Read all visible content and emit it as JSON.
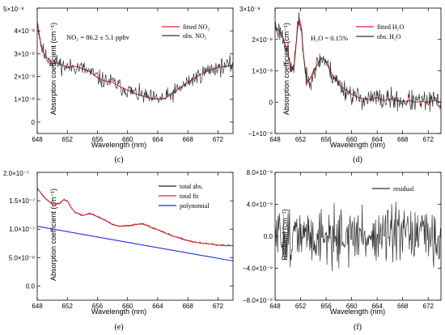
{
  "figure": {
    "panels": [
      {
        "id": "c",
        "caption": "(c)",
        "xlabel": "Wavelength (nm)",
        "ylabel": "Absorption coefficient (cm⁻¹)",
        "annotation": "NO₂ = 86.2 ± 5.1 ppbv",
        "x_ticks": [
          "648",
          "652",
          "656",
          "660",
          "664",
          "668",
          "672"
        ],
        "y_ticks": [
          "0",
          "1×10⁻⁸",
          "2×10⁻⁸",
          "3×10⁻⁸",
          "4×10⁻⁸",
          "5×10⁻⁸"
        ],
        "legend": [
          "fitted NO₂",
          "obs.   NO₂"
        ]
      },
      {
        "id": "d",
        "caption": "(d)",
        "xlabel": "Wavelength (nm)",
        "ylabel": "Absorption coefficient (cm⁻¹)",
        "annotation": "H₂O = 0.15%",
        "x_ticks": [
          "648",
          "652",
          "656",
          "660",
          "664",
          "668",
          "672"
        ],
        "y_ticks": [
          "−1×10⁻⁸",
          "0",
          "1×10⁻⁸",
          "2×10⁻⁸",
          "3×10⁻⁸"
        ],
        "legend": [
          "fitted H₂O",
          "obs.   H₂O"
        ]
      },
      {
        "id": "e",
        "caption": "(e)",
        "xlabel": "Wavelength (nm)",
        "ylabel": "Absorption coefficient (cm⁻¹)",
        "annotation": "",
        "x_ticks": [
          "648",
          "652",
          "656",
          "660",
          "664",
          "668",
          "672"
        ],
        "y_ticks": [
          "0.0",
          "5.0×10⁻⁸",
          "1.0×10⁻⁷",
          "1.5×10⁻⁷",
          "2.0×10⁻⁷"
        ],
        "legend": [
          "total abs.",
          "total fit",
          "polynomial"
        ]
      },
      {
        "id": "f",
        "caption": "(f)",
        "xlabel": "Wavelength (nm)",
        "ylabel": "Residual (cm⁻¹)",
        "annotation": "",
        "x_ticks": [
          "648",
          "652",
          "656",
          "660",
          "664",
          "668",
          "672"
        ],
        "y_ticks": [
          "−8.0×10⁻⁹",
          "−4.0×10⁻⁹",
          "0.0",
          "4.0×10⁻⁹",
          "8.0×10⁻⁹"
        ],
        "legend": [
          "residual"
        ]
      }
    ]
  },
  "chart_data": [
    {
      "type": "line",
      "panel": "c",
      "xlabel": "Wavelength (nm)",
      "ylabel": "Absorption coefficient (cm⁻¹)",
      "xlim": [
        648,
        674
      ],
      "ylim": [
        -5e-09,
        5e-08
      ],
      "x_ticks": [
        648,
        652,
        656,
        660,
        664,
        668,
        672
      ],
      "y_ticks": [
        0,
        1e-08,
        2e-08,
        3e-08,
        4e-08,
        5e-08
      ],
      "grid": false,
      "legend_position": "top-right",
      "annotation": "NO₂ = 86.2 ± 5.1 ppbv",
      "series": [
        {
          "name": "fitted NO₂",
          "color": "#e8202a",
          "style": "smooth",
          "x": [
            648,
            648.5,
            649,
            650,
            651,
            652,
            653,
            654,
            655,
            656,
            657,
            658,
            659,
            660,
            661,
            662,
            663,
            664,
            665,
            666,
            667,
            668,
            669,
            670,
            671,
            672,
            673,
            674
          ],
          "y": [
            4.4e-08,
            3.4e-08,
            2.9e-08,
            2.65e-08,
            2.55e-08,
            2.4e-08,
            2.45e-08,
            2.35e-08,
            2.2e-08,
            1.95e-08,
            1.8e-08,
            1.75e-08,
            1.55e-08,
            1.4e-08,
            1.25e-08,
            1.15e-08,
            1.05e-08,
            1e-08,
            1.05e-08,
            1.25e-08,
            1.5e-08,
            1.75e-08,
            1.95e-08,
            2.15e-08,
            2.3e-08,
            2.4e-08,
            2.45e-08,
            2.5e-08
          ]
        },
        {
          "name": "obs.   NO₂",
          "color": "#333333",
          "style": "noisy",
          "noise": 2.8e-09,
          "seed": 11,
          "x": [
            648,
            648.5,
            649,
            650,
            651,
            652,
            653,
            654,
            655,
            656,
            657,
            658,
            659,
            660,
            661,
            662,
            663,
            664,
            665,
            666,
            667,
            668,
            669,
            670,
            671,
            672,
            673,
            674
          ],
          "y": [
            4.4e-08,
            3.4e-08,
            2.9e-08,
            2.65e-08,
            2.55e-08,
            2.4e-08,
            2.45e-08,
            2.35e-08,
            2.2e-08,
            1.95e-08,
            1.8e-08,
            1.75e-08,
            1.55e-08,
            1.4e-08,
            1.25e-08,
            1.15e-08,
            1.05e-08,
            1e-08,
            1.05e-08,
            1.25e-08,
            1.5e-08,
            1.75e-08,
            1.95e-08,
            2.15e-08,
            2.3e-08,
            2.4e-08,
            2.45e-08,
            2.5e-08
          ]
        }
      ]
    },
    {
      "type": "line",
      "panel": "d",
      "xlabel": "Wavelength (nm)",
      "ylabel": "Absorption coefficient (cm⁻¹)",
      "xlim": [
        648,
        674
      ],
      "ylim": [
        -1e-08,
        3e-08
      ],
      "x_ticks": [
        648,
        652,
        656,
        660,
        664,
        668,
        672
      ],
      "y_ticks": [
        -1e-08,
        0,
        1e-08,
        2e-08,
        3e-08
      ],
      "grid": false,
      "legend_position": "top-right",
      "annotation": "H₂O = 0.15%",
      "series": [
        {
          "name": "fitted H₂O",
          "color": "#e8202a",
          "style": "smooth",
          "x": [
            648,
            649,
            650,
            650.5,
            651,
            651.5,
            651.8,
            652.1,
            652.5,
            653,
            653.5,
            654,
            654.5,
            655,
            655.5,
            656,
            656.5,
            657,
            657.5,
            658,
            659,
            660,
            661,
            662,
            663,
            664,
            665,
            666,
            667,
            668,
            669,
            670,
            671,
            672,
            673,
            674
          ],
          "y": [
            2.4e-08,
            2.2e-08,
            1.6e-08,
            1e-08,
            1.2e-08,
            2.3e-08,
            2.65e-08,
            2.4e-08,
            1.4e-08,
            6e-09,
            7.5e-09,
            1e-08,
            1.15e-08,
            1.35e-08,
            1.4e-08,
            1.3e-08,
            1.05e-08,
            8.5e-09,
            7.5e-09,
            5.5e-09,
            4e-09,
            2.5e-09,
            1.5e-09,
            1e-09,
            8e-10,
            1.5e-09,
            5e-10,
            1e-09,
            5e-10,
            2e-10,
            5e-10,
            0.0,
            2e-10,
            0.0,
            5e-10,
            0.0
          ]
        },
        {
          "name": "obs.   H₂O",
          "color": "#333333",
          "style": "noisy",
          "noise": 2.5e-09,
          "seed": 23,
          "x": [
            648,
            649,
            650,
            650.5,
            651,
            651.5,
            651.8,
            652.1,
            652.5,
            653,
            653.5,
            654,
            654.5,
            655,
            655.5,
            656,
            656.5,
            657,
            657.5,
            658,
            659,
            660,
            661,
            662,
            663,
            664,
            665,
            666,
            667,
            668,
            669,
            670,
            671,
            672,
            673,
            674
          ],
          "y": [
            2.4e-08,
            2.2e-08,
            1.6e-08,
            1e-08,
            1.2e-08,
            2.3e-08,
            2.65e-08,
            2.4e-08,
            1.4e-08,
            6e-09,
            7.5e-09,
            1e-08,
            1.15e-08,
            1.35e-08,
            1.4e-08,
            1.3e-08,
            1.05e-08,
            8.5e-09,
            7.5e-09,
            5.5e-09,
            4e-09,
            2.5e-09,
            1.5e-09,
            1e-09,
            8e-10,
            1.5e-09,
            5e-10,
            1e-09,
            5e-10,
            2e-10,
            5e-10,
            0.0,
            2e-10,
            0.0,
            5e-10,
            0.0
          ]
        }
      ]
    },
    {
      "type": "line",
      "panel": "e",
      "xlabel": "Wavelength (nm)",
      "ylabel": "Absorption coefficient (cm⁻¹)",
      "xlim": [
        648,
        674
      ],
      "ylim": [
        -2.5e-08,
        2e-07
      ],
      "x_ticks": [
        648,
        652,
        656,
        660,
        664,
        668,
        672
      ],
      "y_ticks": [
        0,
        5e-08,
        1e-07,
        1.5e-07,
        2e-07
      ],
      "grid": false,
      "legend_position": "top-right",
      "series": [
        {
          "name": "total abs.",
          "color": "#222222",
          "style": "noisy",
          "noise": 1.2e-09,
          "seed": 37,
          "x": [
            648,
            649,
            650,
            651,
            651.5,
            652,
            652.5,
            653,
            654,
            655,
            656,
            657,
            658,
            659,
            660,
            661,
            662,
            663,
            664,
            665,
            666,
            667,
            668,
            669,
            670,
            671,
            672,
            673,
            674
          ],
          "y": [
            1.72e-07,
            1.55e-07,
            1.44e-07,
            1.45e-07,
            1.52e-07,
            1.5e-07,
            1.38e-07,
            1.3e-07,
            1.24e-07,
            1.28e-07,
            1.22e-07,
            1.16e-07,
            1.08e-07,
            1.05e-07,
            1.06e-07,
            1.08e-07,
            1.1e-07,
            1.04e-07,
            9.9e-08,
            9.3e-08,
            8.8e-08,
            8.4e-08,
            8e-08,
            7.7e-08,
            7.5e-08,
            7.4e-08,
            7.2e-08,
            7.1e-08,
            7.1e-08
          ]
        },
        {
          "name": "total fit",
          "color": "#e8202a",
          "style": "smooth",
          "x": [
            648,
            649,
            650,
            651,
            651.5,
            652,
            652.5,
            653,
            654,
            655,
            656,
            657,
            658,
            659,
            660,
            661,
            662,
            663,
            664,
            665,
            666,
            667,
            668,
            669,
            670,
            671,
            672,
            673,
            674
          ],
          "y": [
            1.72e-07,
            1.55e-07,
            1.44e-07,
            1.45e-07,
            1.52e-07,
            1.5e-07,
            1.38e-07,
            1.3e-07,
            1.24e-07,
            1.28e-07,
            1.22e-07,
            1.16e-07,
            1.08e-07,
            1.05e-07,
            1.06e-07,
            1.08e-07,
            1.1e-07,
            1.04e-07,
            9.9e-08,
            9.3e-08,
            8.8e-08,
            8.4e-08,
            8e-08,
            7.7e-08,
            7.5e-08,
            7.4e-08,
            7.2e-08,
            7.1e-08,
            7.1e-08
          ]
        },
        {
          "name": "polynomial",
          "color": "#1f2fd6",
          "style": "smooth",
          "x": [
            648,
            674
          ],
          "y": [
            1.05e-07,
            4.4e-08
          ]
        }
      ]
    },
    {
      "type": "line",
      "panel": "f",
      "xlabel": "Wavelength (nm)",
      "ylabel": "Residual (cm⁻¹)",
      "xlim": [
        648,
        674
      ],
      "ylim": [
        -8e-09,
        8e-09
      ],
      "x_ticks": [
        648,
        652,
        656,
        660,
        664,
        668,
        672
      ],
      "y_ticks": [
        -8e-09,
        -4e-09,
        0,
        4e-09,
        8e-09
      ],
      "grid": false,
      "legend_position": "top-right",
      "series": [
        {
          "name": "residual",
          "color": "#333333",
          "style": "noisy",
          "noise": 2.6e-09,
          "seed": 51,
          "x": [
            648,
            674
          ],
          "y": [
            0,
            0
          ]
        }
      ]
    }
  ]
}
